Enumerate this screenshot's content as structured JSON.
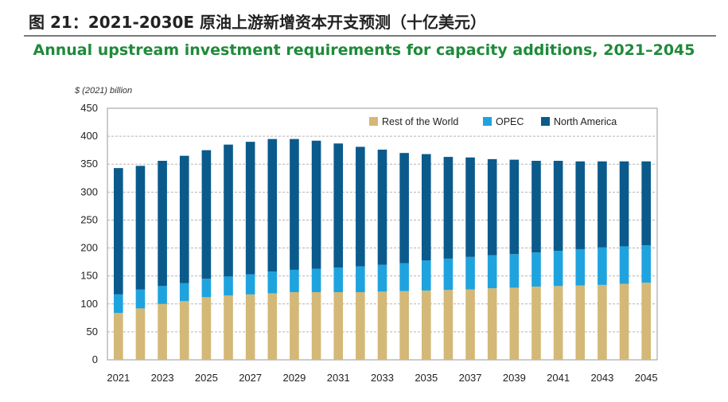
{
  "header": {
    "figure_title": "图 21：2021-2030E 原油上游新增资本开支预测（十亿美元）"
  },
  "chart_data": {
    "type": "bar",
    "stacked": true,
    "title": "Annual upstream investment requirements for capacity additions, 2021–2045",
    "ylabel": "$ (2021) billion",
    "xlabel": "",
    "ylim": [
      0,
      450
    ],
    "yticks": [
      0,
      50,
      100,
      150,
      200,
      250,
      300,
      350,
      400,
      450
    ],
    "grid": true,
    "legend_position": "top-right",
    "categories": [
      "2021",
      "2022",
      "2023",
      "2024",
      "2025",
      "2026",
      "2027",
      "2028",
      "2029",
      "2030",
      "2031",
      "2032",
      "2033",
      "2034",
      "2035",
      "2036",
      "2037",
      "2038",
      "2039",
      "2040",
      "2041",
      "2042",
      "2043",
      "2044",
      "2045"
    ],
    "xtick_labels": [
      "2021",
      "2023",
      "2025",
      "2027",
      "2029",
      "2031",
      "2033",
      "2035",
      "2037",
      "2039",
      "2041",
      "2043",
      "2045"
    ],
    "series": [
      {
        "name": "Rest of the World",
        "color": "#d4b877",
        "values": [
          84,
          92,
          100,
          105,
          112,
          115,
          117,
          119,
          121,
          121,
          121,
          121,
          122,
          123,
          124,
          125,
          126,
          128,
          129,
          131,
          132,
          133,
          134,
          136,
          138
        ]
      },
      {
        "name": "OPEC",
        "color": "#1fa3de",
        "values": [
          33,
          34,
          32,
          32,
          33,
          34,
          36,
          39,
          40,
          42,
          44,
          46,
          48,
          50,
          54,
          56,
          58,
          59,
          60,
          61,
          63,
          65,
          67,
          67,
          67
        ]
      },
      {
        "name": "North America",
        "color": "#0b5a8c",
        "values": [
          226,
          221,
          224,
          228,
          230,
          236,
          237,
          237,
          234,
          229,
          222,
          214,
          206,
          197,
          190,
          182,
          178,
          172,
          169,
          164,
          161,
          157,
          154,
          152,
          150
        ]
      }
    ]
  }
}
